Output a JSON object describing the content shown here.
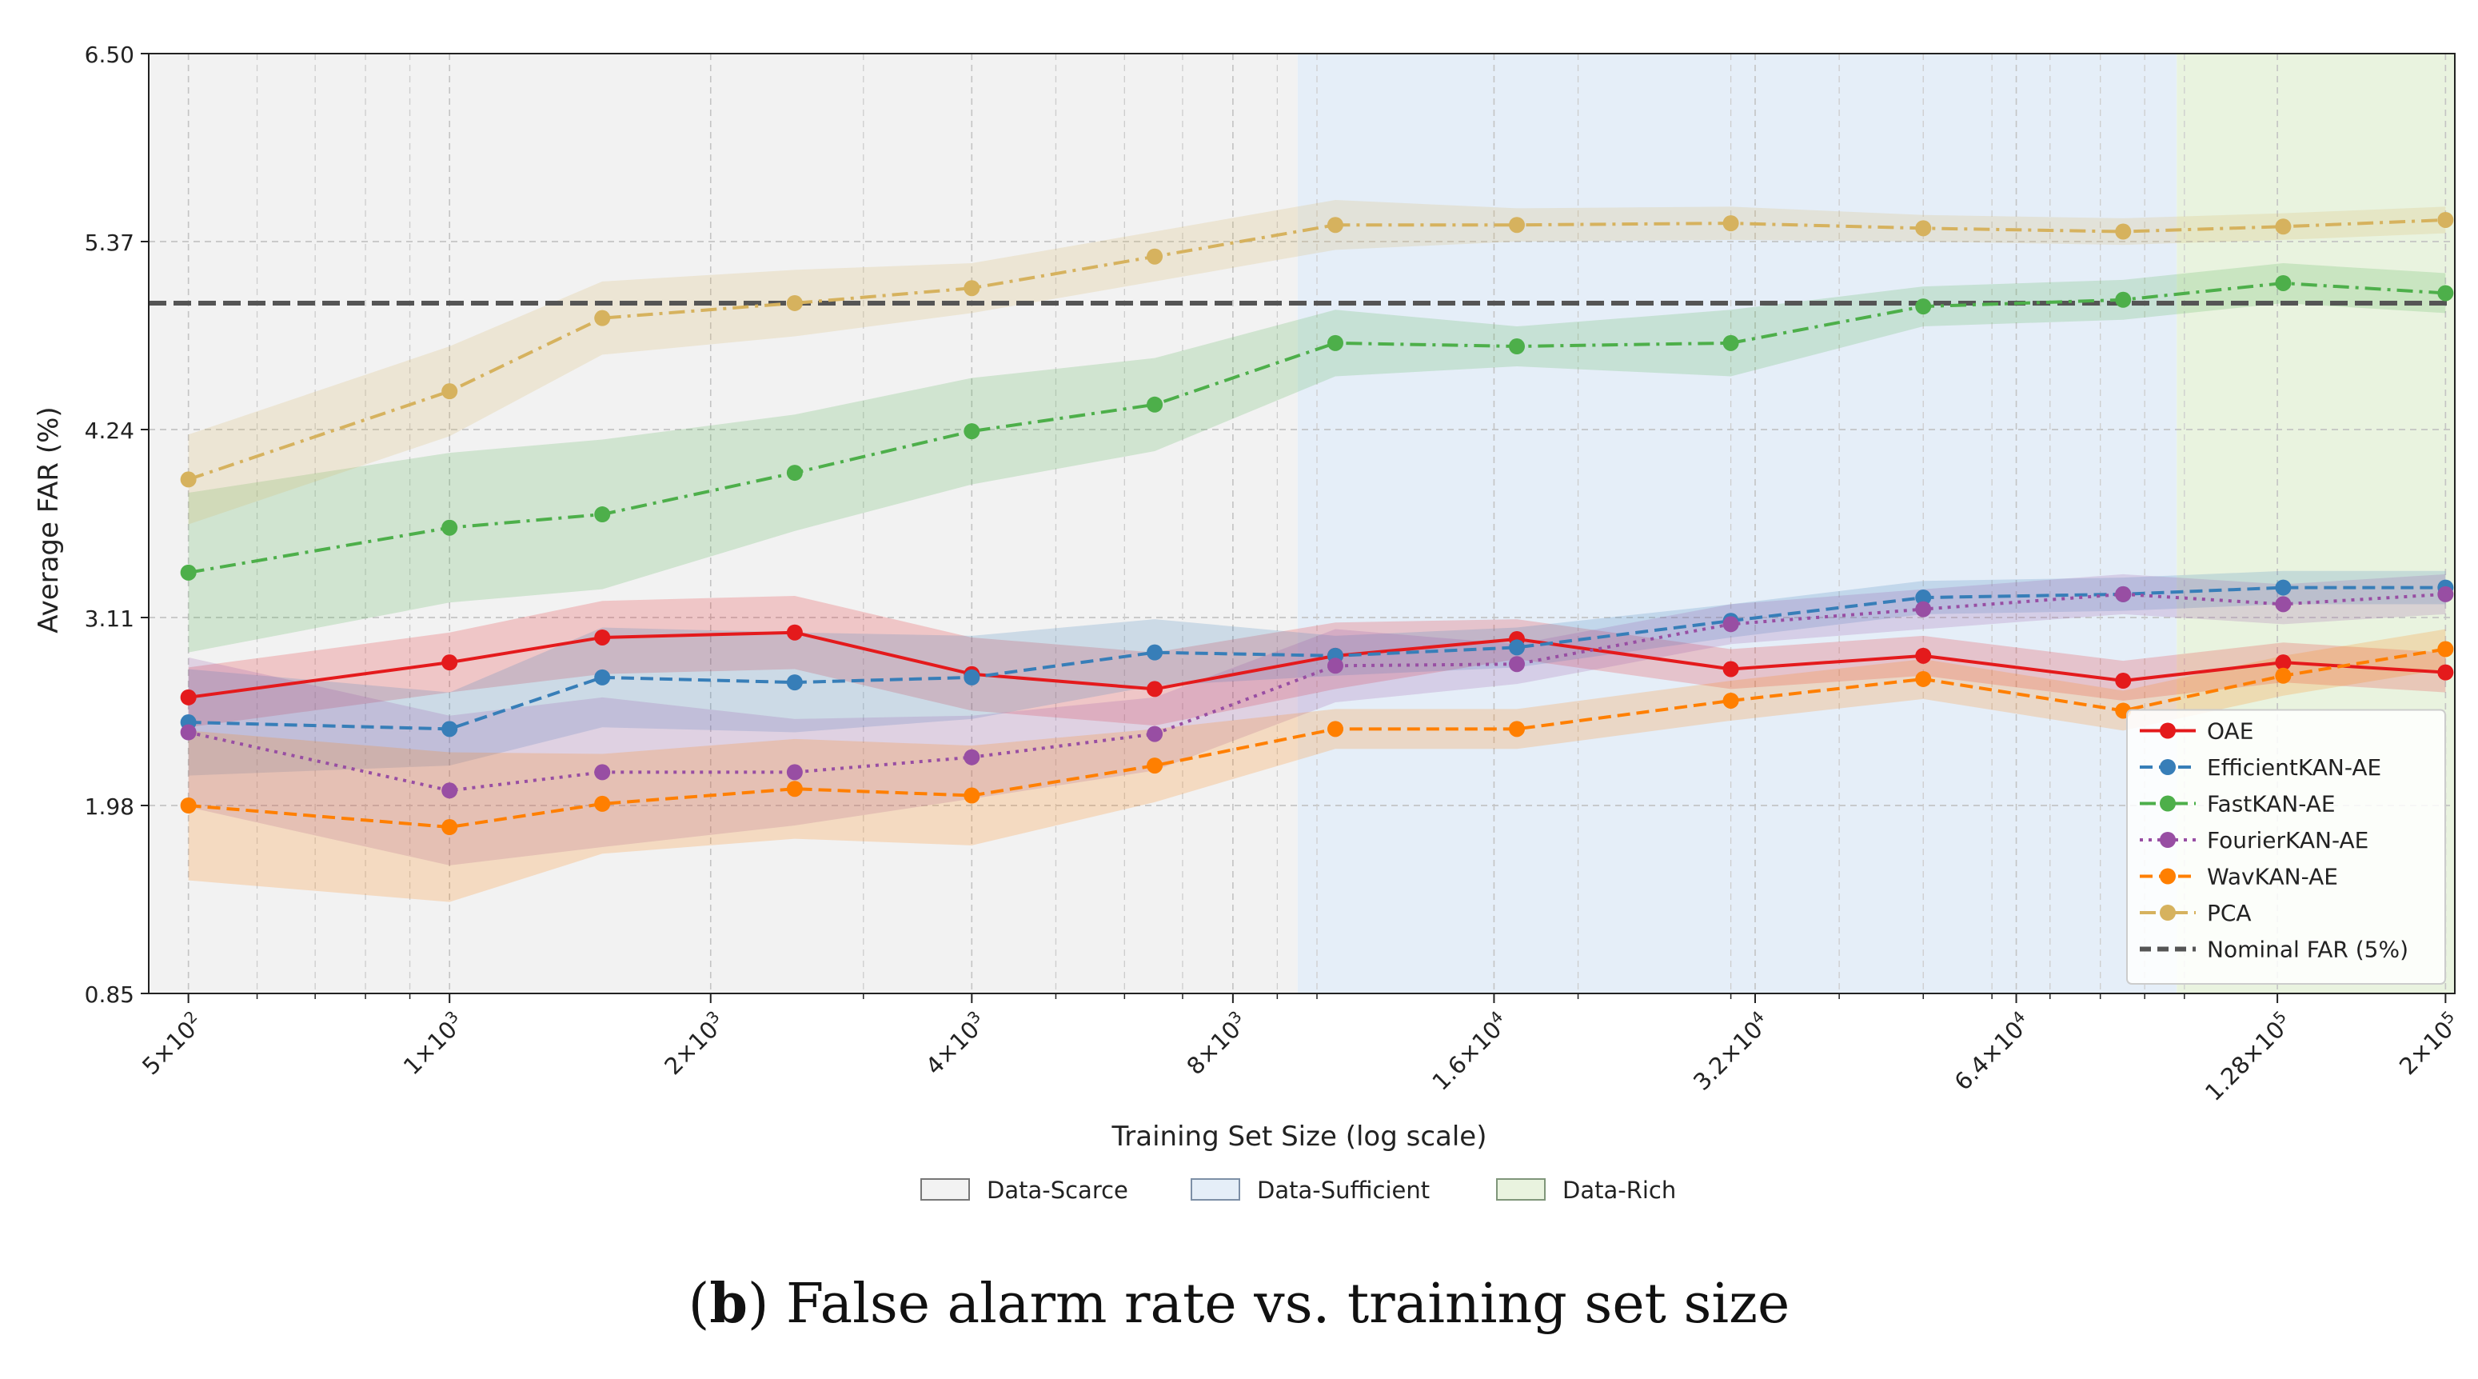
{
  "caption": {
    "open": "(",
    "letter": "b",
    "text": ") False alarm rate vs. training set size"
  },
  "chart_data": {
    "type": "line",
    "xlabel": "Training Set Size (log scale)",
    "ylabel": "Average FAR (%)",
    "xscale": "log",
    "xlim": [
      450,
      205000
    ],
    "ylim": [
      0.85,
      6.5
    ],
    "yticks": [
      0.85,
      1.98,
      3.11,
      4.24,
      5.37,
      6.5
    ],
    "ytick_labels": [
      "0.85",
      "1.98",
      "3.11",
      "4.24",
      "5.37",
      "6.50"
    ],
    "xticks": [
      {
        "value": 500,
        "mant": "5",
        "exp": "2"
      },
      {
        "value": 1000,
        "mant": "1",
        "exp": "3"
      },
      {
        "value": 2000,
        "mant": "2",
        "exp": "3"
      },
      {
        "value": 4000,
        "mant": "4",
        "exp": "3"
      },
      {
        "value": 8000,
        "mant": "8",
        "exp": "3"
      },
      {
        "value": 16000,
        "mant": "1.6",
        "exp": "4"
      },
      {
        "value": 32000,
        "mant": "3.2",
        "exp": "4"
      },
      {
        "value": 64000,
        "mant": "6.4",
        "exp": "4"
      },
      {
        "value": 128000,
        "mant": "1.28",
        "exp": "5"
      },
      {
        "value": 200000,
        "mant": "2",
        "exp": "5"
      }
    ],
    "grid": true,
    "x": [
      500,
      1000,
      1500,
      2500,
      4000,
      6500,
      10500,
      17000,
      30000,
      50000,
      85000,
      130000,
      200000
    ],
    "regions": [
      {
        "name": "Data-Scarce",
        "from": 450,
        "to": 9500,
        "color": "#f2f2f2",
        "edge": "#777777"
      },
      {
        "name": "Data-Sufficient",
        "from": 9500,
        "to": 98000,
        "color": "#e5eef8",
        "edge": "#7d8fa6"
      },
      {
        "name": "Data-Rich",
        "from": 98000,
        "to": 205000,
        "color": "#e9f3df",
        "edge": "#7f967a"
      }
    ],
    "reference_line": {
      "name": "Nominal FAR (5%)",
      "y": 5.0,
      "color": "#555555"
    },
    "series": [
      {
        "name": "OAE",
        "color": "#e41a1c",
        "dash": "solid",
        "values": [
          2.63,
          2.84,
          2.99,
          3.02,
          2.77,
          2.68,
          2.88,
          2.98,
          2.8,
          2.88,
          2.73,
          2.84,
          2.78
        ],
        "band": [
          0.18,
          0.18,
          0.22,
          0.22,
          0.22,
          0.22,
          0.2,
          0.12,
          0.12,
          0.12,
          0.12,
          0.12,
          0.12
        ]
      },
      {
        "name": "EfficientKAN-AE",
        "color": "#377eb8",
        "dash": "dashed",
        "values": [
          2.48,
          2.44,
          2.75,
          2.72,
          2.75,
          2.9,
          2.88,
          2.93,
          3.09,
          3.23,
          3.25,
          3.29,
          3.29
        ],
        "band": [
          0.32,
          0.22,
          0.3,
          0.3,
          0.25,
          0.2,
          0.12,
          0.12,
          0.1,
          0.1,
          0.1,
          0.1,
          0.1
        ]
      },
      {
        "name": "FastKAN-AE",
        "color": "#4daf4a",
        "dash": "dashdot",
        "values": [
          3.38,
          3.65,
          3.73,
          3.98,
          4.23,
          4.39,
          4.76,
          4.74,
          4.76,
          4.98,
          5.02,
          5.12,
          5.06
        ],
        "band": [
          0.48,
          0.45,
          0.45,
          0.35,
          0.32,
          0.28,
          0.2,
          0.12,
          0.2,
          0.12,
          0.12,
          0.12,
          0.12
        ]
      },
      {
        "name": "FourierKAN-AE",
        "color": "#984ea3",
        "dash": "dotted",
        "values": [
          2.42,
          2.07,
          2.18,
          2.18,
          2.27,
          2.41,
          2.82,
          2.83,
          3.07,
          3.16,
          3.25,
          3.19,
          3.25
        ],
        "band": [
          0.45,
          0.45,
          0.45,
          0.32,
          0.25,
          0.22,
          0.22,
          0.12,
          0.12,
          0.12,
          0.12,
          0.12,
          0.12
        ]
      },
      {
        "name": "WavKAN-AE",
        "color": "#ff7f00",
        "dash": "dashed",
        "values": [
          1.98,
          1.85,
          1.99,
          2.08,
          2.04,
          2.22,
          2.44,
          2.44,
          2.61,
          2.74,
          2.55,
          2.76,
          2.92
        ],
        "band": [
          0.45,
          0.45,
          0.3,
          0.3,
          0.3,
          0.22,
          0.12,
          0.12,
          0.12,
          0.12,
          0.12,
          0.12,
          0.12
        ]
      },
      {
        "name": "PCA",
        "color": "#d6b25e",
        "dash": "dashdot",
        "values": [
          3.94,
          4.47,
          4.91,
          5.0,
          5.09,
          5.28,
          5.47,
          5.47,
          5.48,
          5.45,
          5.43,
          5.46,
          5.5
        ],
        "band": [
          0.27,
          0.27,
          0.22,
          0.2,
          0.15,
          0.15,
          0.15,
          0.1,
          0.1,
          0.08,
          0.08,
          0.08,
          0.08
        ]
      }
    ],
    "legend_position": "lower-right"
  }
}
